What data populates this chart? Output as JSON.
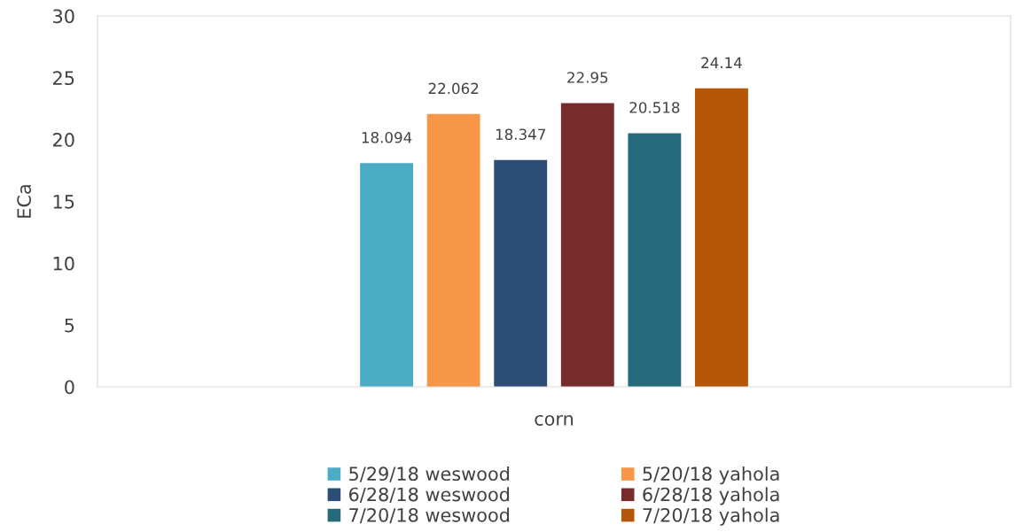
{
  "chart_data": {
    "type": "bar",
    "ylabel": "ECa",
    "categories": [
      "corn"
    ],
    "series": [
      {
        "name": "5/29/18 weswood",
        "color": "#4bacc6",
        "values": [
          18.094
        ]
      },
      {
        "name": "5/20/18 yahola",
        "color": "#f79646",
        "values": [
          22.062
        ]
      },
      {
        "name": "6/28/18 weswood",
        "color": "#2c4d75",
        "values": [
          18.347
        ]
      },
      {
        "name": "6/28/18 yahola",
        "color": "#772c2a",
        "values": [
          22.95
        ]
      },
      {
        "name": "7/20/18 weswood",
        "color": "#276a7c",
        "values": [
          20.518
        ]
      },
      {
        "name": "7/20/18 yahola",
        "color": "#b65708",
        "values": [
          24.14
        ]
      }
    ],
    "ylim": [
      0,
      30
    ],
    "yticks": [
      0,
      5,
      10,
      15,
      20,
      25,
      30
    ],
    "grid": false,
    "legend": "bottom",
    "data_labels": true
  }
}
